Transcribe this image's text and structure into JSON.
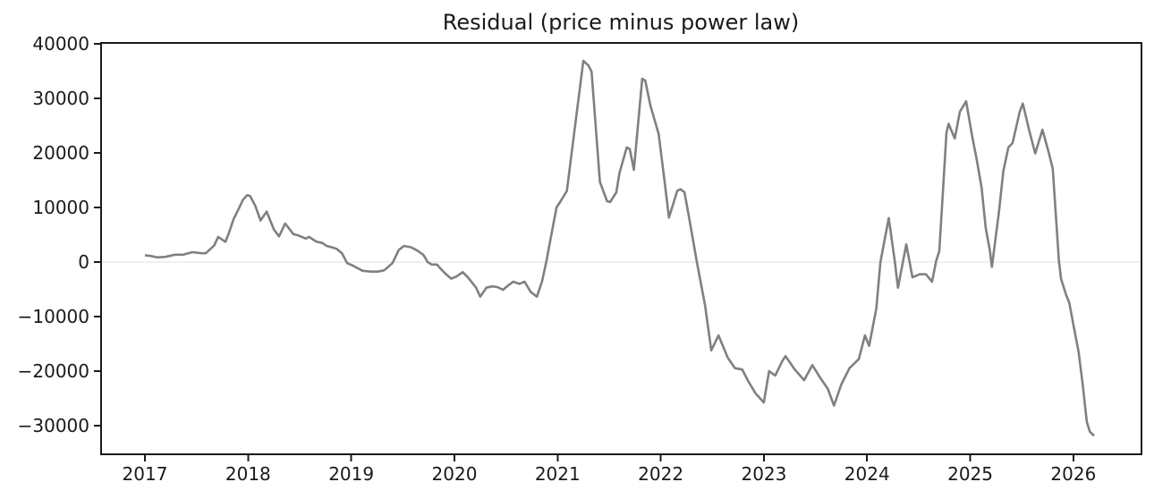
{
  "chart_data": {
    "type": "line",
    "title": "Residual (price minus power law)",
    "xlabel": "",
    "ylabel": "",
    "legend": "none",
    "grid": "zero-line-only",
    "background": "#ffffff",
    "axis_color": "#1a1a1a",
    "zero_line_color": "#e0e0e0",
    "xlim": [
      2016.575,
      2026.66
    ],
    "ylim": [
      -35240,
      40160
    ],
    "xticks": [
      {
        "v": 2017,
        "label": "2017"
      },
      {
        "v": 2018,
        "label": "2018"
      },
      {
        "v": 2019,
        "label": "2019"
      },
      {
        "v": 2020,
        "label": "2020"
      },
      {
        "v": 2021,
        "label": "2021"
      },
      {
        "v": 2022,
        "label": "2022"
      },
      {
        "v": 2023,
        "label": "2023"
      },
      {
        "v": 2024,
        "label": "2024"
      },
      {
        "v": 2025,
        "label": "2025"
      },
      {
        "v": 2026,
        "label": "2026"
      }
    ],
    "yticks": [
      {
        "v": 40000,
        "label": "40000"
      },
      {
        "v": 30000,
        "label": "30000"
      },
      {
        "v": 20000,
        "label": "20000"
      },
      {
        "v": 10000,
        "label": "10000"
      },
      {
        "v": 0,
        "label": "0"
      },
      {
        "v": -10000,
        "label": "−10000"
      },
      {
        "v": -20000,
        "label": "−20000"
      },
      {
        "v": -30000,
        "label": "−30000"
      }
    ],
    "series": [
      {
        "name": "residual",
        "color": "#808080",
        "linewidth": 2.6,
        "x": [
          2017.0,
          2017.06,
          2017.12,
          2017.2,
          2017.29,
          2017.37,
          2017.46,
          2017.55,
          2017.59,
          2017.67,
          2017.71,
          2017.78,
          2017.81,
          2017.86,
          2017.91,
          2017.95,
          2017.99,
          2018.02,
          2018.07,
          2018.12,
          2018.18,
          2018.25,
          2018.3,
          2018.36,
          2018.44,
          2018.49,
          2018.56,
          2018.59,
          2018.66,
          2018.72,
          2018.76,
          2018.82,
          2018.86,
          2018.91,
          2018.96,
          2019.01,
          2019.11,
          2019.19,
          2019.26,
          2019.32,
          2019.4,
          2019.46,
          2019.51,
          2019.58,
          2019.64,
          2019.7,
          2019.74,
          2019.78,
          2019.83,
          2019.88,
          2019.92,
          2019.97,
          2020.02,
          2020.08,
          2020.13,
          2020.21,
          2020.25,
          2020.31,
          2020.37,
          2020.42,
          2020.47,
          2020.51,
          2020.57,
          2020.63,
          2020.68,
          2020.74,
          2020.8,
          2020.85,
          2020.89,
          2020.99,
          2021.03,
          2021.09,
          2021.16,
          2021.25,
          2021.3,
          2021.33,
          2021.41,
          2021.48,
          2021.51,
          2021.57,
          2021.6,
          2021.67,
          2021.7,
          2021.74,
          2021.82,
          2021.85,
          2021.9,
          2021.98,
          2022.04,
          2022.08,
          2022.16,
          2022.19,
          2022.23,
          2022.27,
          2022.35,
          2022.43,
          2022.49,
          2022.56,
          2022.65,
          2022.72,
          2022.79,
          2022.85,
          2022.92,
          2023.0,
          2023.05,
          2023.11,
          2023.18,
          2023.21,
          2023.3,
          2023.39,
          2023.47,
          2023.55,
          2023.62,
          2023.68,
          2023.75,
          2023.83,
          2023.92,
          2023.98,
          2024.02,
          2024.09,
          2024.13,
          2024.21,
          2024.27,
          2024.3,
          2024.38,
          2024.44,
          2024.51,
          2024.57,
          2024.63,
          2024.67,
          2024.7,
          2024.74,
          2024.77,
          2024.79,
          2024.82,
          2024.85,
          2024.9,
          2024.96,
          2025.02,
          2025.06,
          2025.11,
          2025.15,
          2025.19,
          2025.21,
          2025.28,
          2025.32,
          2025.37,
          2025.41,
          2025.48,
          2025.51,
          2025.57,
          2025.63,
          2025.7,
          2025.76,
          2025.8,
          2025.86,
          2025.88,
          2025.93,
          2025.96,
          2026.0,
          2026.05,
          2026.09,
          2026.13,
          2026.16,
          2026.2
        ],
        "y": [
          1250,
          1100,
          850,
          950,
          1350,
          1350,
          1800,
          1600,
          1600,
          3000,
          4600,
          3700,
          5100,
          7900,
          9800,
          11400,
          12250,
          12100,
          10300,
          7600,
          9250,
          5950,
          4700,
          7050,
          5100,
          4850,
          4300,
          4600,
          3750,
          3500,
          2950,
          2650,
          2400,
          1600,
          -200,
          -600,
          -1600,
          -1750,
          -1750,
          -1500,
          -200,
          2200,
          2950,
          2700,
          2100,
          1300,
          0,
          -450,
          -450,
          -1500,
          -2250,
          -3050,
          -2650,
          -1850,
          -2800,
          -4700,
          -6350,
          -4700,
          -4450,
          -4600,
          -5100,
          -4450,
          -3600,
          -4000,
          -3600,
          -5500,
          -6350,
          -3500,
          0,
          10000,
          11150,
          13050,
          23450,
          36900,
          36000,
          34900,
          14700,
          11150,
          11000,
          12800,
          16350,
          21000,
          20700,
          16900,
          33600,
          33250,
          28650,
          23450,
          14400,
          8150,
          13050,
          13350,
          12800,
          8700,
          0,
          -8000,
          -16200,
          -13450,
          -17550,
          -19450,
          -19700,
          -21900,
          -24100,
          -25750,
          -20000,
          -20800,
          -18100,
          -17250,
          -19700,
          -21650,
          -18900,
          -21350,
          -23250,
          -26300,
          -22450,
          -19450,
          -17800,
          -13450,
          -15350,
          -8500,
          0,
          8050,
          -50,
          -4700,
          3250,
          -2800,
          -2250,
          -2250,
          -3600,
          200,
          2000,
          14400,
          23700,
          25350,
          24000,
          22650,
          27550,
          29450,
          22900,
          19050,
          13600,
          6250,
          2150,
          -900,
          9500,
          16600,
          21000,
          21800,
          27550,
          29050,
          24250,
          19900,
          24250,
          20150,
          17150,
          200,
          -3100,
          -6050,
          -7450,
          -11500,
          -16450,
          -22450,
          -29300,
          -31100,
          -31850
        ]
      }
    ]
  }
}
